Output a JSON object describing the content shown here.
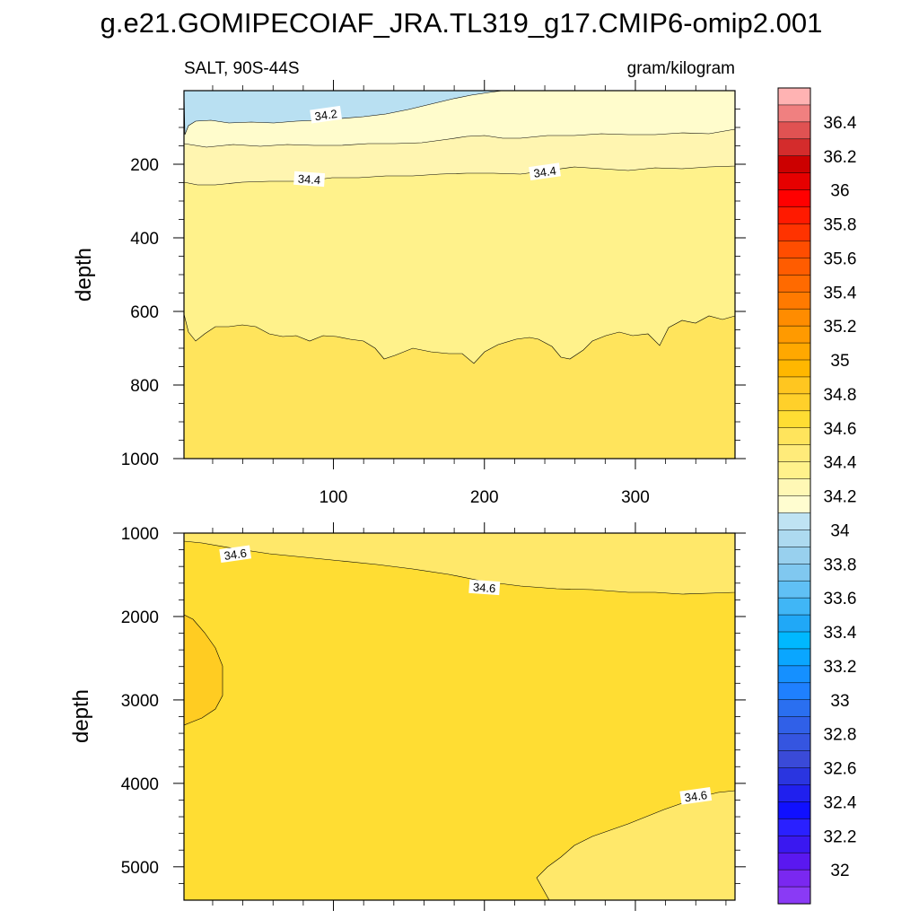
{
  "title": "g.e21.GOMIPECOIAF_JRA.TL319_g17.CMIP6-omip2.001",
  "subtitle_left": "SALT, 90S-44S",
  "subtitle_right": "gram/kilogram",
  "chart_data": [
    {
      "type": "heatmap",
      "panel": "upper",
      "subtitle_left": "SALT, 90S-44S",
      "subtitle_right": "gram/kilogram",
      "xlabel": "",
      "ylabel": "depth",
      "xlim": [
        1,
        366
      ],
      "ylim": [
        1000,
        0
      ],
      "yreversed": true,
      "xticks": [
        100,
        200,
        300
      ],
      "xtick_labels": [
        "100",
        "200",
        "300"
      ],
      "yticks": [
        200,
        400,
        600,
        800,
        1000
      ],
      "ytick_labels": [
        "200",
        "400",
        "600",
        "800",
        "1000"
      ],
      "contour_labels": [
        {
          "text": "34.2",
          "x": 95,
          "y": 65
        },
        {
          "text": "34.4",
          "x": 84,
          "y": 240
        },
        {
          "text": "34.4",
          "x": 240,
          "y": 220
        }
      ],
      "regions": [
        {
          "value_range": "34.0-34.2",
          "color": "#b9e0f2",
          "depth_range": [
            0,
            60
          ]
        },
        {
          "value_range": "34.2-34.3",
          "color": "#fffccc",
          "depth_range": [
            20,
            160
          ]
        },
        {
          "value_range": "34.3-34.4",
          "color": "#fff5b0",
          "depth_range": [
            110,
            260
          ]
        },
        {
          "value_range": "34.4-34.5",
          "color": "#fff28b",
          "depth_range": [
            200,
            740
          ]
        },
        {
          "value_range": "34.5-34.6",
          "color": "#ffe45c",
          "depth_range": [
            600,
            1000
          ]
        }
      ]
    },
    {
      "type": "heatmap",
      "panel": "lower",
      "xlabel": "",
      "ylabel": "depth",
      "xlim": [
        1,
        366
      ],
      "ylim": [
        5400,
        1000
      ],
      "yreversed": true,
      "yticks": [
        1000,
        2000,
        3000,
        4000,
        5000
      ],
      "ytick_labels": [
        "1000",
        "2000",
        "3000",
        "4000",
        "5000"
      ],
      "contour_labels": [
        {
          "text": "34.6",
          "x": 35,
          "y": 1250
        },
        {
          "text": "34.6",
          "x": 200,
          "y": 1650
        },
        {
          "text": "34.6",
          "x": 340,
          "y": 4150
        }
      ],
      "regions": [
        {
          "value_range": "34.5-34.6",
          "color": "#ffe86a",
          "note": "above ~1100-1700 m and deep wedge near x 240-366 below 4100 m"
        },
        {
          "value_range": "34.6-34.7",
          "color": "#ffdd33",
          "note": "bulk of deep ocean"
        },
        {
          "value_range": "34.7-34.8",
          "color": "#ffcc22",
          "note": "western pocket x 1-25, 1950-3300 m"
        }
      ]
    }
  ],
  "colorbar": {
    "levels": [
      "36.4",
      "36.2",
      "36",
      "35.8",
      "35.6",
      "35.4",
      "35.2",
      "35",
      "34.8",
      "34.6",
      "34.4",
      "34.2",
      "34",
      "33.8",
      "33.6",
      "33.4",
      "33.2",
      "33",
      "32.8",
      "32.6",
      "32.4",
      "32.2",
      "32"
    ],
    "colors": [
      "#ffb3b3",
      "#f08080",
      "#e05252",
      "#d42c2c",
      "#cc0000",
      "#e60000",
      "#ff0000",
      "#ff1a00",
      "#ff3300",
      "#ff4d00",
      "#ff5c00",
      "#ff6a00",
      "#ff7a00",
      "#ff8c00",
      "#ff9a00",
      "#ffa800",
      "#ffb700",
      "#ffc620",
      "#ffd02a",
      "#ffdd33",
      "#ffe45c",
      "#ffeb7a",
      "#fff28b",
      "#fff8b5",
      "#fffdd0",
      "#bfe3f3",
      "#addaf0",
      "#98d0ee",
      "#80c8f0",
      "#60c0f5",
      "#40b6f6",
      "#20a8f7",
      "#00b8ff",
      "#0aa6ff",
      "#1590ff",
      "#1f80ff",
      "#2a6ff0",
      "#3060e8",
      "#3555e0",
      "#3a4ad8",
      "#2a35e0",
      "#2020ee",
      "#1010ff",
      "#2a20ff",
      "#3a18f0",
      "#5a18f0",
      "#7a28f0",
      "#8a3af5"
    ]
  }
}
